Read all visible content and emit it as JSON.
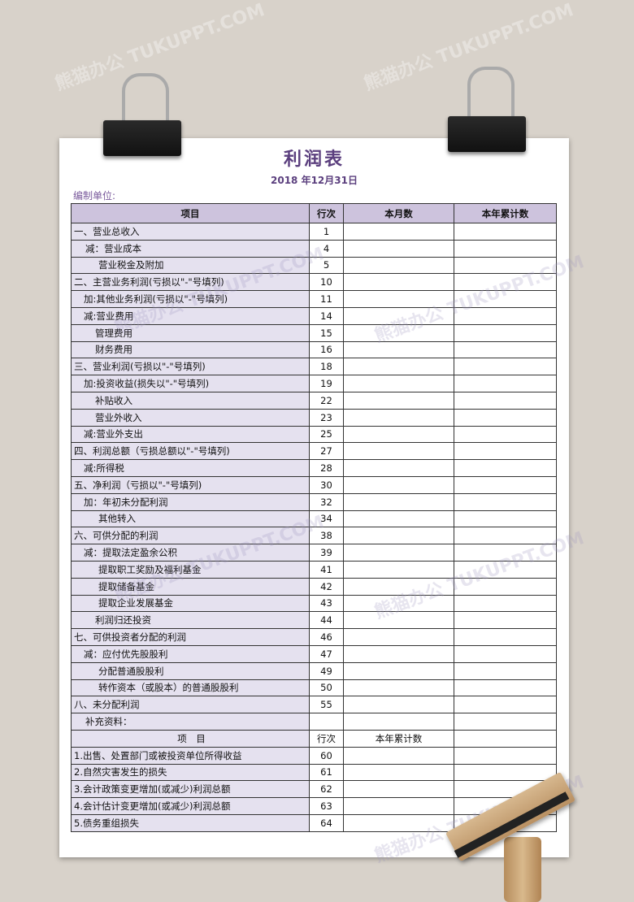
{
  "document": {
    "title": "利润表",
    "date": "2018 年12月31日",
    "unit_label": "编制单位:"
  },
  "header": {
    "item": "项目",
    "line": "行次",
    "month": "本月数",
    "year": "本年累计数"
  },
  "rows": [
    {
      "item": "一、营业总收入",
      "line": "1"
    },
    {
      "item": "减：营业成本",
      "line": "4"
    },
    {
      "item": "营业税金及附加",
      "line": "5"
    },
    {
      "item": "二、主营业务利润(亏损以\"-\"号填列)",
      "line": "10"
    },
    {
      "item": "加:其他业务利润(亏损以\"-\"号填列)",
      "line": "11"
    },
    {
      "item": "减:营业费用",
      "line": "14"
    },
    {
      "item": "管理费用",
      "line": "15"
    },
    {
      "item": "财务费用",
      "line": "16"
    },
    {
      "item": "三、营业利润(亏损以\"-\"号填列)",
      "line": "18"
    },
    {
      "item": "加:投资收益(损失以\"-\"号填列)",
      "line": "19"
    },
    {
      "item": "补贴收入",
      "line": "22"
    },
    {
      "item": "营业外收入",
      "line": "23"
    },
    {
      "item": "减:营业外支出",
      "line": "25"
    },
    {
      "item": "四、利润总额（亏损总额以\"-\"号填列)",
      "line": "27"
    },
    {
      "item": "减:所得税",
      "line": "28"
    },
    {
      "item": "五、净利润（亏损以\"-\"号填列)",
      "line": "30"
    },
    {
      "item": "加：年初未分配利润",
      "line": "32"
    },
    {
      "item": "其他转入",
      "line": "34"
    },
    {
      "item": "六、可供分配的利润",
      "line": "38"
    },
    {
      "item": "减：提取法定盈余公积",
      "line": "39"
    },
    {
      "item": "提取职工奖励及福利基金",
      "line": "41"
    },
    {
      "item": "提取储备基金",
      "line": "42"
    },
    {
      "item": "提取企业发展基金",
      "line": "43"
    },
    {
      "item": "利润归还投资",
      "line": "44"
    },
    {
      "item": "七、可供投资者分配的利润",
      "line": "46"
    },
    {
      "item": "减：应付优先股股利",
      "line": "47"
    },
    {
      "item": "分配普通股股利",
      "line": "49"
    },
    {
      "item": "转作资本（或股本）的普通股股利",
      "line": "50"
    },
    {
      "item": "八、未分配利润",
      "line": "55"
    },
    {
      "item": "补充资料：",
      "line": ""
    }
  ],
  "supplement_header": {
    "item": "项　目",
    "line": "行次",
    "year": "本年累计数"
  },
  "supplement_rows": [
    {
      "item": "1.出售、处置部门或被投资单位所得收益",
      "line": "60"
    },
    {
      "item": "2.自然灾害发生的损失",
      "line": "61"
    },
    {
      "item": "3.会计政策变更增加(或减少)利润总额",
      "line": "62"
    },
    {
      "item": "4.会计估计变更增加(或减少)利润总额",
      "line": "63"
    },
    {
      "item": "5.债务重组损失",
      "line": "64"
    }
  ],
  "watermark": "熊猫办公 TUKUPPT.COM",
  "colors": {
    "header_fill": "#cdc3dd",
    "item_fill": "#e5e1ef",
    "title": "#5b3f7e",
    "background": "#d8d2ca"
  }
}
